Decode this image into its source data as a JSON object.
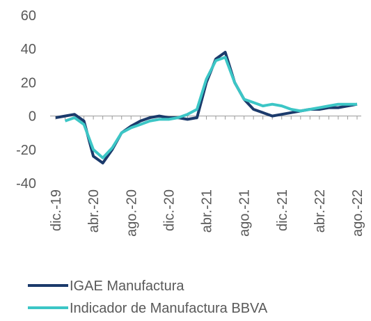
{
  "chart_data": {
    "type": "line",
    "categories": [
      "dic.-19",
      null,
      null,
      null,
      "abr.-20",
      null,
      null,
      null,
      "ago.-20",
      null,
      null,
      null,
      "dic.-20",
      null,
      null,
      null,
      "abr.-21",
      null,
      null,
      null,
      "ago.-21",
      null,
      null,
      null,
      "dic.-21",
      null,
      null,
      null,
      "abr.-22",
      null,
      null,
      null,
      "ago.-22"
    ],
    "series": [
      {
        "name": "IGAE Manufactura",
        "color": "#1b3a6b",
        "values": [
          -1,
          0,
          1,
          -3,
          -24,
          -28,
          -20,
          -10,
          -6,
          -3,
          -1,
          0,
          -1,
          -1,
          -2,
          -1,
          20,
          34,
          38,
          20,
          10,
          4,
          2,
          0,
          1,
          2,
          3,
          4,
          4,
          5,
          5,
          6,
          7
        ]
      },
      {
        "name": "Indicador de Manufactura BBVA",
        "color": "#3cc6c6",
        "values": [
          null,
          -3,
          -1,
          -5,
          -20,
          -25,
          -19,
          -10,
          -7,
          -5,
          -3,
          -2,
          -2,
          -1,
          1,
          4,
          22,
          33,
          35,
          20,
          10,
          8,
          6,
          7,
          6,
          4,
          3,
          4,
          5,
          6,
          7,
          7,
          7
        ]
      }
    ],
    "ylim": [
      -40,
      60
    ],
    "yticks": [
      -40,
      -20,
      0,
      20,
      40,
      60
    ],
    "grid": false,
    "legend": "bottom"
  }
}
